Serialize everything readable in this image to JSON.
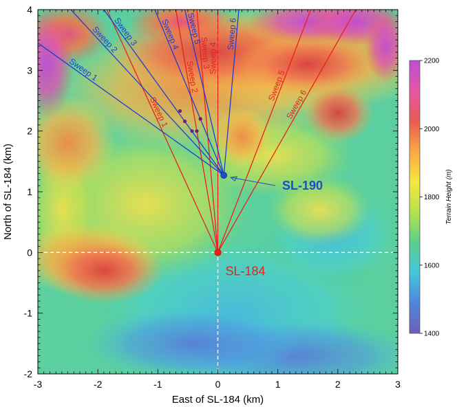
{
  "chart_data": {
    "type": "heatmap",
    "title": "",
    "xlabel": "East of SL-184 (km)",
    "ylabel": "North of SL-184 (km)",
    "xlim": [
      -3,
      3
    ],
    "ylim": [
      -2,
      4
    ],
    "xticks": [
      "-3",
      "-2",
      "-1",
      "0",
      "1",
      "2",
      "3"
    ],
    "yticks": [
      "-2",
      "-1",
      "0",
      "1",
      "2",
      "3",
      "4"
    ],
    "grid": false,
    "colorbar": {
      "label": "Terrain Height (m)",
      "range": [
        1400,
        2200
      ],
      "ticks": [
        "1400",
        "1600",
        "1800",
        "2000",
        "2200"
      ],
      "stops": [
        "#6b5fb5",
        "#4f86e0",
        "#44c6e0",
        "#58d08c",
        "#b6e24c",
        "#f7e640",
        "#f9a845",
        "#ea5a4f",
        "#e657a6",
        "#c04bd6"
      ]
    },
    "crosshair_lines": {
      "x": 0,
      "y": 0,
      "color": "#ffffff",
      "style": "dashed"
    },
    "sites": [
      {
        "name": "SL-184",
        "x": 0.0,
        "y": 0.0,
        "color": "#e8211b"
      },
      {
        "name": "SL-190",
        "x": 0.1,
        "y": 1.27,
        "color": "#1a4fc6"
      }
    ],
    "sweeps_sl184": {
      "color": "#e8211b",
      "lines": [
        {
          "name": "Sweep 1",
          "end": [
            -1.85,
            4.0
          ]
        },
        {
          "name": "Sweep 2",
          "end": [
            -0.7,
            4.0
          ]
        },
        {
          "name": "Sweep 3",
          "end": [
            -0.35,
            4.0
          ]
        },
        {
          "name": "Sweep 4",
          "end": [
            0.0,
            4.0
          ]
        },
        {
          "name": "Sweep 5",
          "end": [
            1.55,
            4.0
          ]
        },
        {
          "name": "Sweep 6",
          "end": [
            2.3,
            4.0
          ]
        }
      ]
    },
    "sweeps_sl190": {
      "color": "#1a3fd0",
      "lines": [
        {
          "name": "Sweep 1",
          "end": [
            -3.0,
            3.45
          ]
        },
        {
          "name": "Sweep 2",
          "end": [
            -2.45,
            4.0
          ]
        },
        {
          "name": "Sweep 3",
          "end": [
            -1.9,
            4.0
          ]
        },
        {
          "name": "Sweep 4",
          "end": [
            -1.05,
            4.0
          ]
        },
        {
          "name": "Sweep 5",
          "end": [
            -0.55,
            4.0
          ]
        },
        {
          "name": "Sweep 6",
          "end": [
            0.35,
            4.0
          ]
        }
      ]
    },
    "markers": [
      {
        "x": -0.63,
        "y": 2.33
      },
      {
        "x": -0.55,
        "y": 2.16
      },
      {
        "x": -0.43,
        "y": 2.0
      },
      {
        "x": -0.35,
        "y": 2.0
      },
      {
        "x": -0.29,
        "y": 2.2
      }
    ]
  }
}
